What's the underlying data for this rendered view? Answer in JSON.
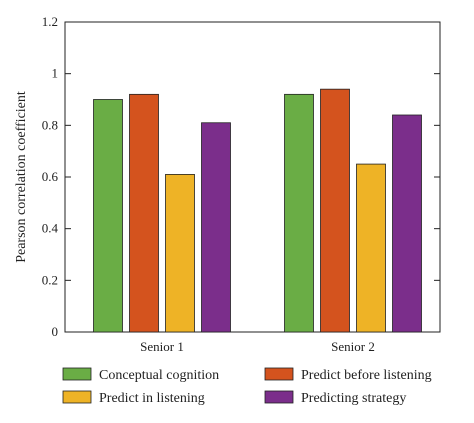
{
  "chart_data": {
    "type": "bar",
    "title": "",
    "xlabel": "",
    "ylabel": "Pearson correlation coefficient",
    "ylim": [
      0,
      1.2
    ],
    "yticks": [
      0,
      0.2,
      0.4,
      0.6,
      0.8,
      1,
      1.2
    ],
    "ytick_labels": [
      "0",
      "0.2",
      "0.4",
      "0.6",
      "0.8",
      "1",
      "1.2"
    ],
    "categories": [
      "Senior 1",
      "Senior 2"
    ],
    "grid": false,
    "legend_position": "bottom",
    "series": [
      {
        "name": "Conceptual cognition",
        "color": "#6aad45",
        "values": [
          0.9,
          0.92
        ]
      },
      {
        "name": "Predict before listening",
        "color": "#d4531e",
        "values": [
          0.92,
          0.94
        ]
      },
      {
        "name": "Predict in listening",
        "color": "#eeb326",
        "values": [
          0.61,
          0.65
        ]
      },
      {
        "name": "Predicting strategy",
        "color": "#7b2e8b",
        "values": [
          0.81,
          0.84
        ]
      }
    ]
  }
}
